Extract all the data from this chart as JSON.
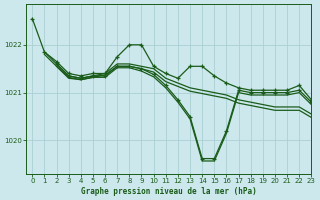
{
  "background_color": "#cce8ec",
  "grid_color": "#aad0d4",
  "line_color": "#1a5c1a",
  "title": "Graphe pression niveau de la mer (hPa)",
  "xlim": [
    -0.5,
    23
  ],
  "ylim": [
    1019.3,
    1022.85
  ],
  "yticks": [
    1020,
    1021,
    1022
  ],
  "xticks": [
    0,
    1,
    2,
    3,
    4,
    5,
    6,
    7,
    8,
    9,
    10,
    11,
    12,
    13,
    14,
    15,
    16,
    17,
    18,
    19,
    20,
    21,
    22,
    23
  ],
  "series": [
    {
      "x": [
        0,
        1,
        2,
        3,
        4,
        5,
        6,
        7,
        8,
        9,
        10,
        11,
        12,
        13,
        14,
        15,
        16,
        17,
        18,
        19,
        20,
        21,
        22,
        23
      ],
      "y": [
        1022.55,
        1021.85,
        1021.65,
        1021.4,
        1021.35,
        1021.4,
        1021.4,
        1021.75,
        1022.0,
        1022.0,
        1021.55,
        1021.4,
        1021.3,
        1021.55,
        1021.55,
        1021.35,
        1021.2,
        1021.1,
        1021.05,
        1021.05,
        1021.05,
        1021.05,
        1021.15,
        1020.85
      ],
      "marker": "+"
    },
    {
      "x": [
        1,
        2,
        3,
        4,
        5,
        6,
        7,
        8,
        9,
        10,
        11,
        12,
        13,
        14,
        15,
        16,
        17,
        18,
        19,
        20,
        21,
        22,
        23
      ],
      "y": [
        1021.85,
        1021.6,
        1021.35,
        1021.3,
        1021.35,
        1021.4,
        1021.6,
        1021.6,
        1021.55,
        1021.5,
        1021.3,
        1021.2,
        1021.1,
        1021.05,
        1021.0,
        1020.95,
        1020.85,
        1020.8,
        1020.75,
        1020.7,
        1020.7,
        1020.7,
        1020.55
      ],
      "marker": null
    },
    {
      "x": [
        1,
        2,
        3,
        4,
        5,
        6,
        7,
        8,
        9,
        10,
        11,
        12,
        13,
        14,
        15,
        16,
        17,
        18,
        19,
        20,
        21,
        22,
        23
      ],
      "y": [
        1021.8,
        1021.55,
        1021.32,
        1021.27,
        1021.32,
        1021.37,
        1021.55,
        1021.55,
        1021.5,
        1021.43,
        1021.23,
        1021.13,
        1021.03,
        1020.98,
        1020.93,
        1020.88,
        1020.78,
        1020.73,
        1020.68,
        1020.63,
        1020.63,
        1020.63,
        1020.48
      ],
      "marker": null
    },
    {
      "x": [
        2,
        3,
        4,
        5,
        6,
        7,
        8,
        9,
        10,
        11,
        12,
        13,
        14,
        15,
        16,
        17,
        18,
        19,
        20,
        21,
        22,
        23
      ],
      "y": [
        1021.6,
        1021.35,
        1021.3,
        1021.35,
        1021.35,
        1021.55,
        1021.55,
        1021.5,
        1021.38,
        1021.15,
        1020.85,
        1020.5,
        1019.62,
        1019.62,
        1020.2,
        1021.05,
        1021.0,
        1021.0,
        1021.0,
        1021.0,
        1021.05,
        1020.8
      ],
      "marker": "+"
    },
    {
      "x": [
        2,
        3,
        4,
        5,
        6,
        7,
        8,
        9,
        10,
        11,
        12,
        13,
        14,
        15,
        16,
        17,
        18,
        19,
        20,
        21,
        22,
        23
      ],
      "y": [
        1021.55,
        1021.3,
        1021.27,
        1021.32,
        1021.32,
        1021.52,
        1021.52,
        1021.45,
        1021.33,
        1021.1,
        1020.8,
        1020.45,
        1019.57,
        1019.57,
        1020.15,
        1021.0,
        1020.95,
        1020.95,
        1020.95,
        1020.95,
        1021.0,
        1020.75
      ],
      "marker": null
    }
  ]
}
